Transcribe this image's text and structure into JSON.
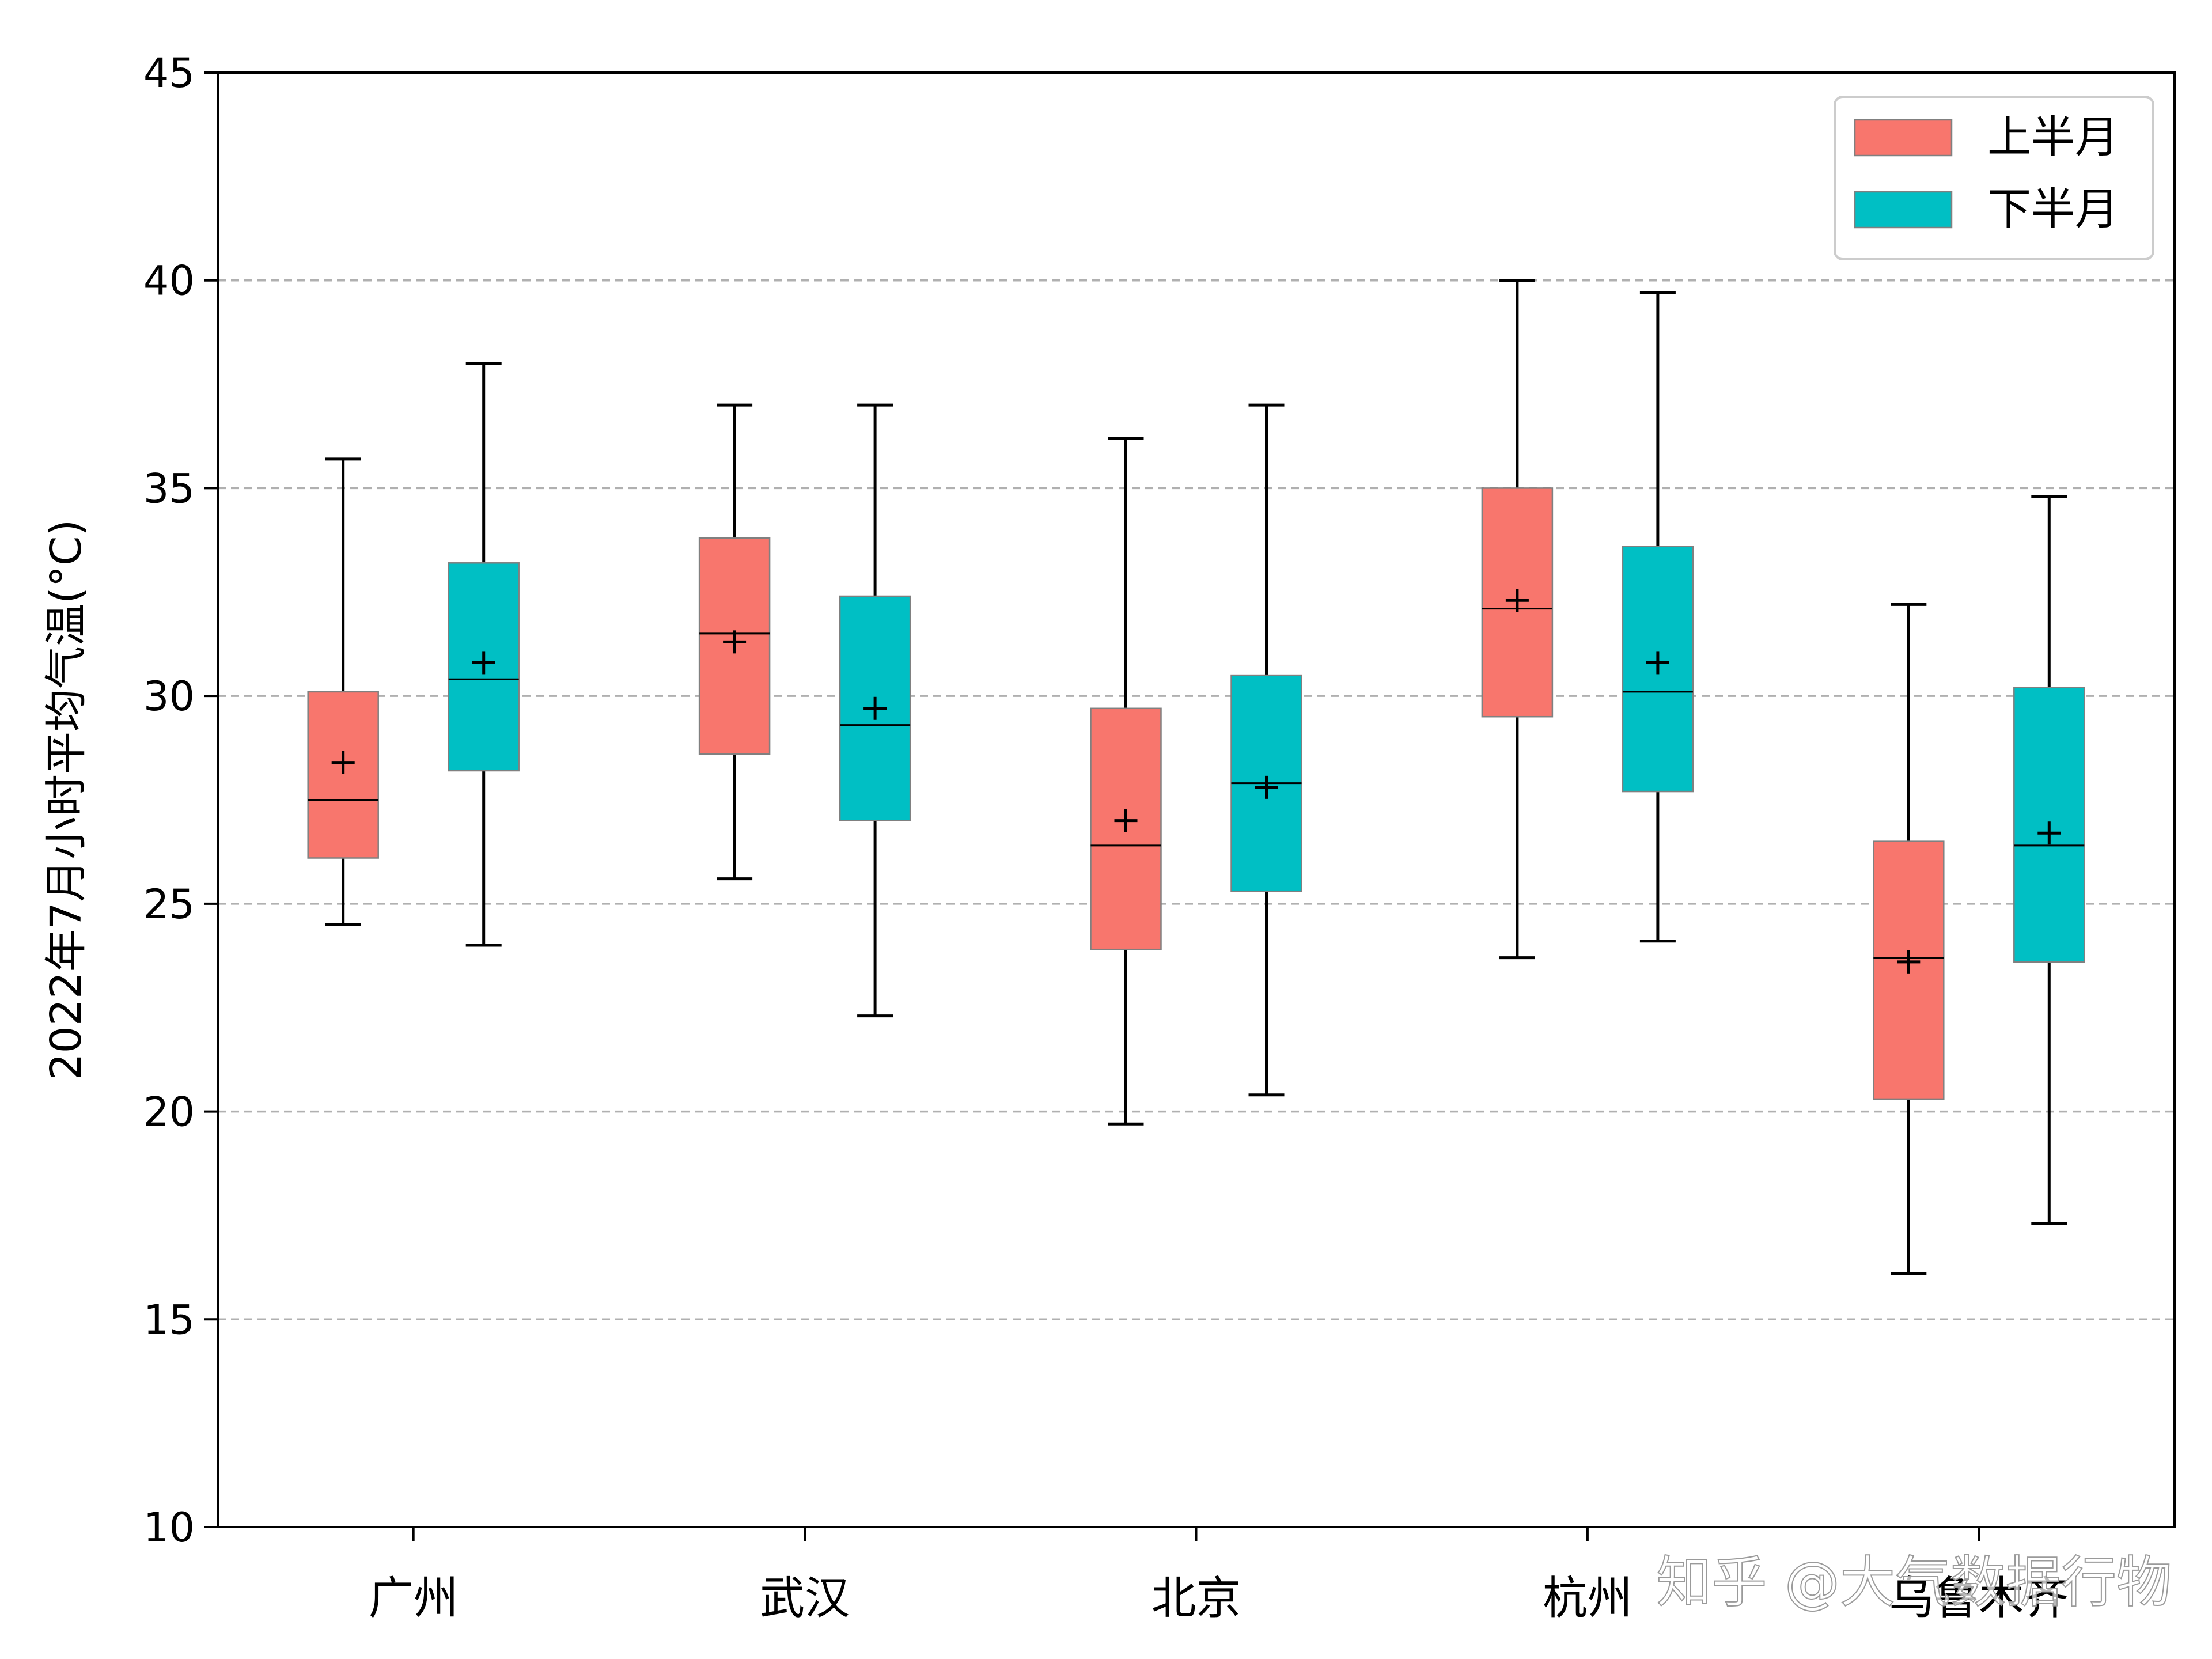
{
  "chart_data": {
    "type": "box",
    "title": "",
    "xlabel": "",
    "ylabel": "2022年7月小时平均气温(°C)",
    "ylim": [
      10,
      45
    ],
    "yticks": [
      10,
      15,
      20,
      25,
      30,
      35,
      40,
      45
    ],
    "grid": "y-dashed",
    "legend_position": "top-right",
    "categories": [
      "广州",
      "武汉",
      "北京",
      "杭州",
      "乌鲁木齐"
    ],
    "series": [
      {
        "name": "上半月",
        "color": "#F8766D",
        "boxes": [
          {
            "whisker_low": 24.5,
            "q1": 26.1,
            "median": 27.5,
            "q3": 30.1,
            "whisker_high": 35.7,
            "mean": 28.4
          },
          {
            "whisker_low": 25.6,
            "q1": 28.6,
            "median": 31.5,
            "q3": 33.8,
            "whisker_high": 37.0,
            "mean": 31.3
          },
          {
            "whisker_low": 19.7,
            "q1": 23.9,
            "median": 26.4,
            "q3": 29.7,
            "whisker_high": 36.2,
            "mean": 27.0
          },
          {
            "whisker_low": 23.7,
            "q1": 29.5,
            "median": 32.1,
            "q3": 35.0,
            "whisker_high": 40.0,
            "mean": 32.3
          },
          {
            "whisker_low": 16.1,
            "q1": 20.3,
            "median": 23.7,
            "q3": 26.5,
            "whisker_high": 32.2,
            "mean": 23.6
          }
        ]
      },
      {
        "name": "下半月",
        "color": "#00BFC4",
        "boxes": [
          {
            "whisker_low": 24.0,
            "q1": 28.2,
            "median": 30.4,
            "q3": 33.2,
            "whisker_high": 38.0,
            "mean": 30.8
          },
          {
            "whisker_low": 22.3,
            "q1": 27.0,
            "median": 29.3,
            "q3": 32.4,
            "whisker_high": 37.0,
            "mean": 29.7
          },
          {
            "whisker_low": 20.4,
            "q1": 25.3,
            "median": 27.9,
            "q3": 30.5,
            "whisker_high": 37.0,
            "mean": 27.8
          },
          {
            "whisker_low": 24.1,
            "q1": 27.7,
            "median": 30.1,
            "q3": 33.6,
            "whisker_high": 39.7,
            "mean": 30.8
          },
          {
            "whisker_low": 17.3,
            "q1": 23.6,
            "median": 26.4,
            "q3": 30.2,
            "whisker_high": 34.8,
            "mean": 26.7
          }
        ]
      }
    ],
    "mean_marker": "+"
  },
  "watermark": "知乎 @大气数据行物"
}
